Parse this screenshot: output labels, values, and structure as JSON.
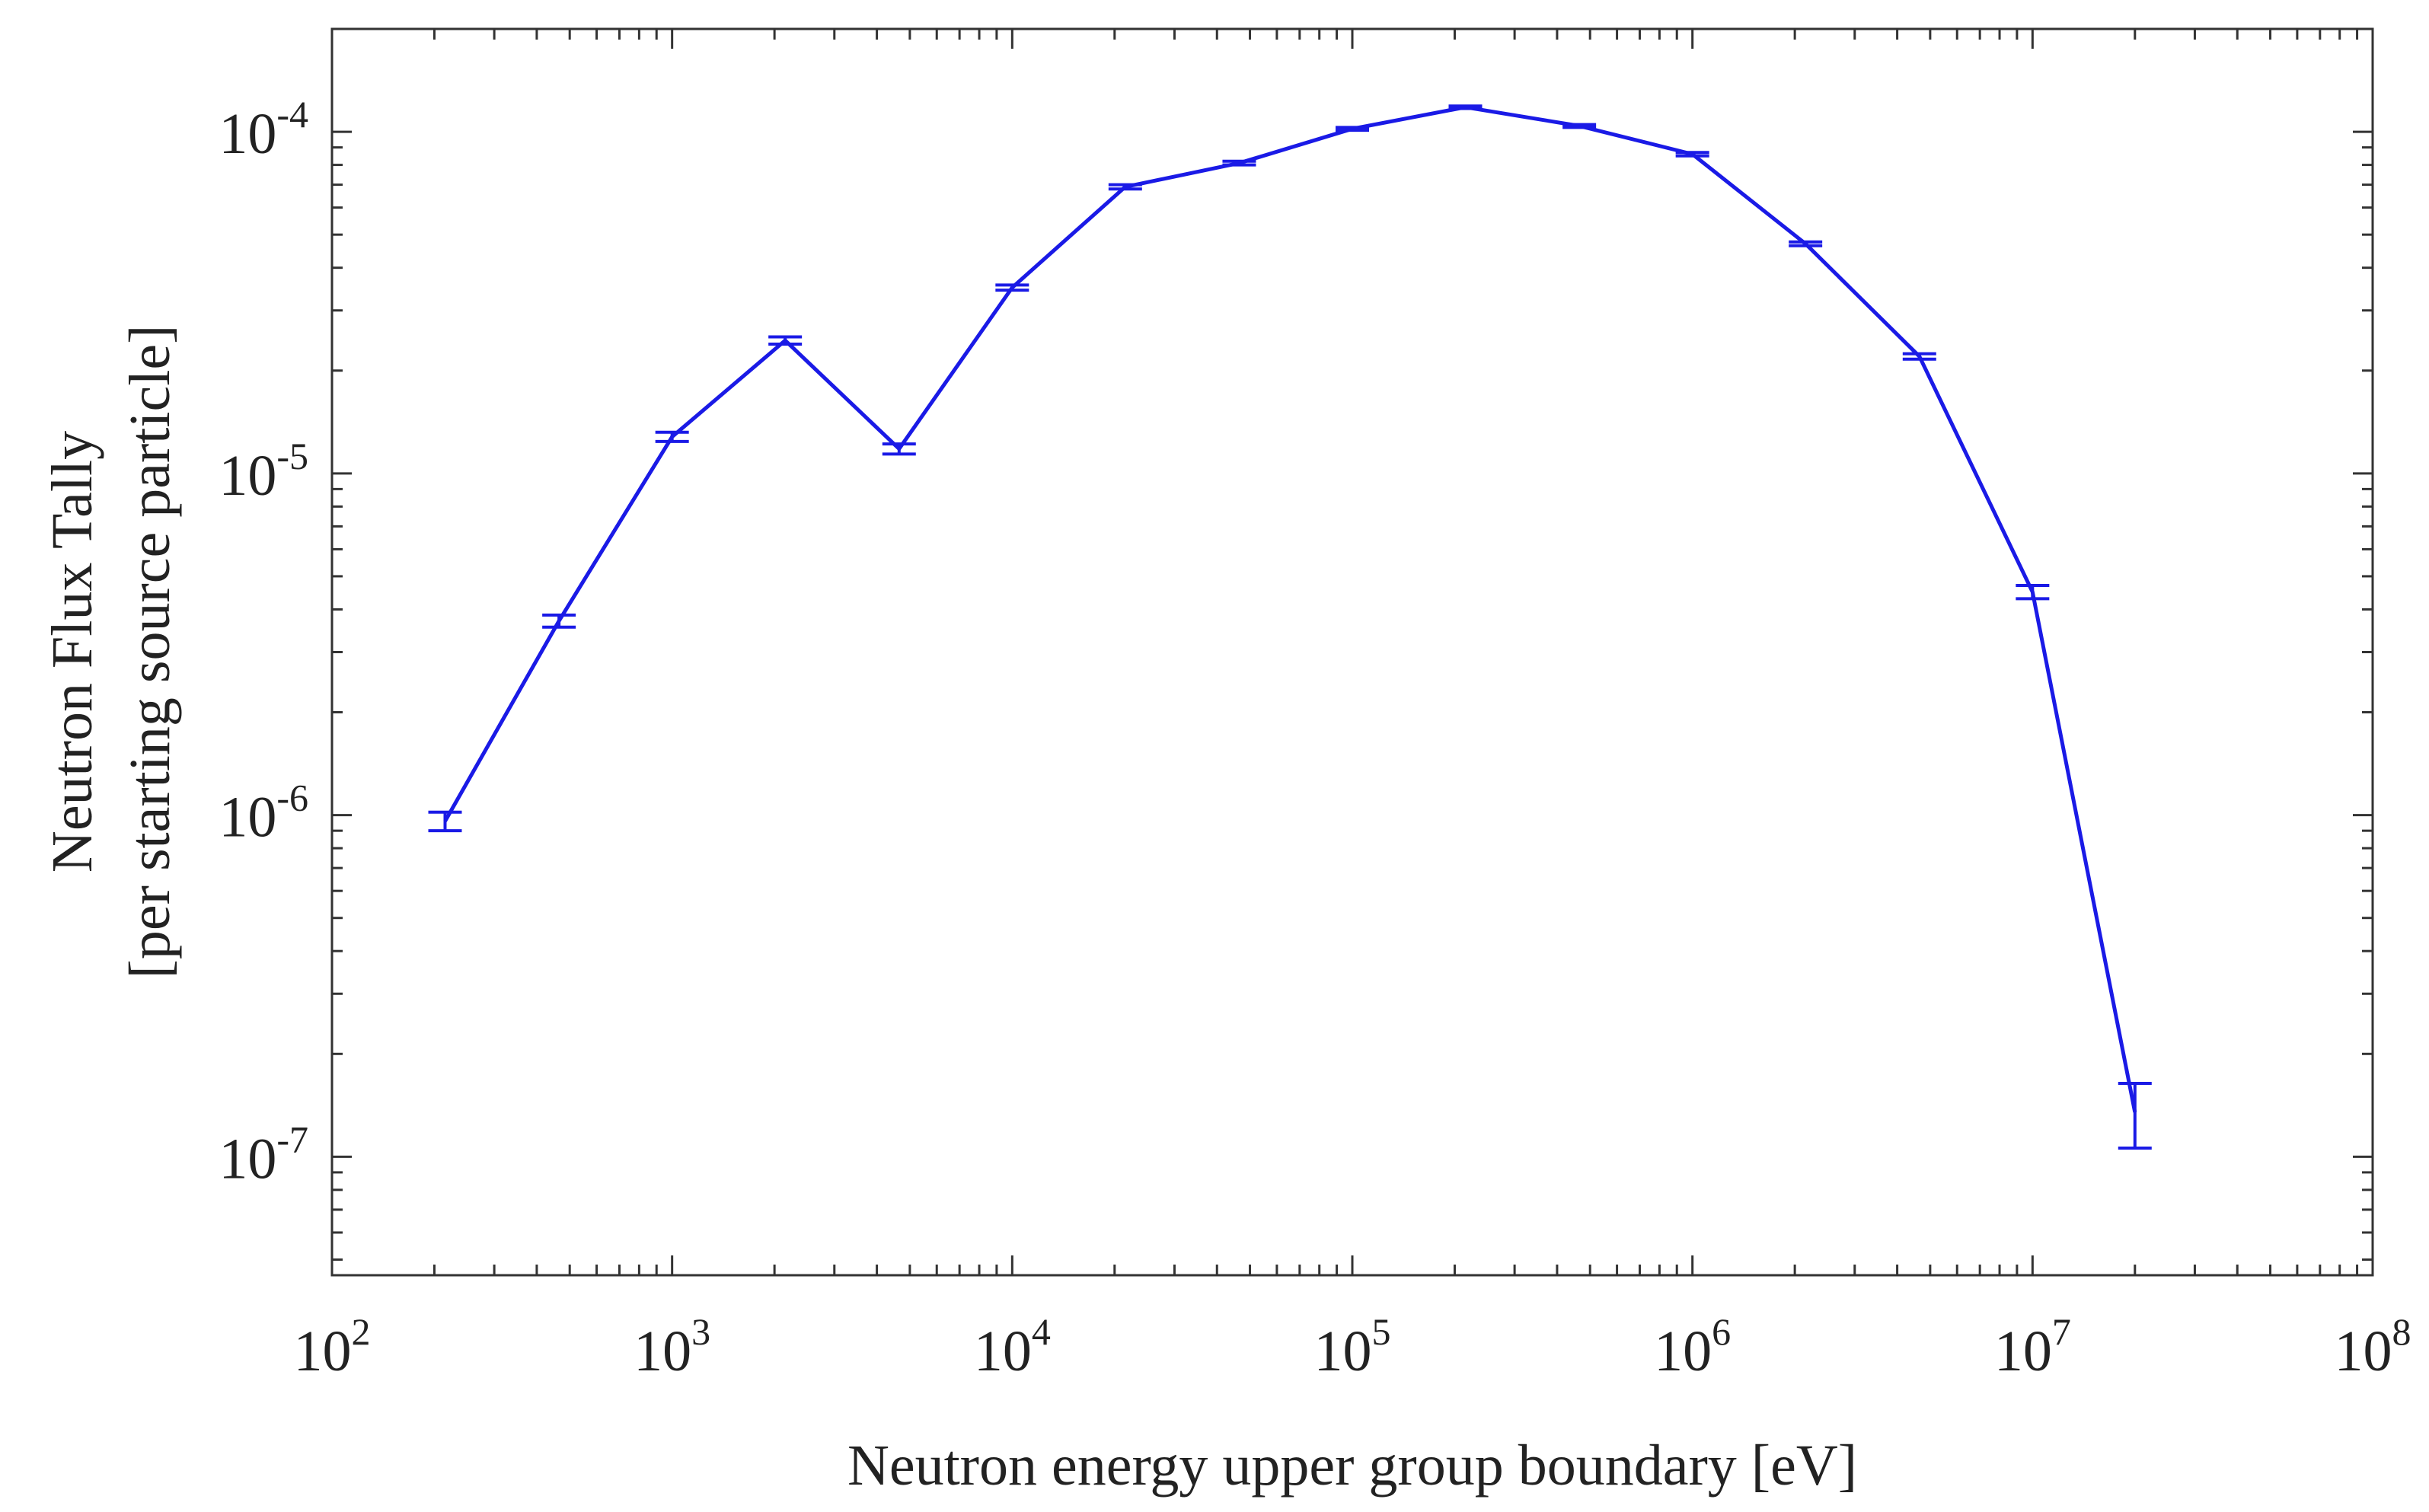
{
  "chart_data": {
    "type": "line",
    "title": "",
    "xlabel": "Neutron energy upper group boundary [eV]",
    "ylabel_lines": [
      "Neutron Flux Tally",
      "[per starting source particle]"
    ],
    "xscale": "log",
    "yscale": "log",
    "xlim": [
      100,
      100000000
    ],
    "ylim": [
      4.5e-08,
      0.0002
    ],
    "grid": false,
    "legend": "none",
    "x_ticks": [
      {
        "base": "10",
        "exp": "2",
        "value": 100
      },
      {
        "base": "10",
        "exp": "3",
        "value": 1000
      },
      {
        "base": "10",
        "exp": "4",
        "value": 10000
      },
      {
        "base": "10",
        "exp": "5",
        "value": 100000
      },
      {
        "base": "10",
        "exp": "6",
        "value": 1000000
      },
      {
        "base": "10",
        "exp": "7",
        "value": 10000000
      },
      {
        "base": "10",
        "exp": "8",
        "value": 100000000
      }
    ],
    "y_ticks": [
      {
        "base": "10",
        "exp": "-7",
        "value": 1e-07
      },
      {
        "base": "10",
        "exp": "-6",
        "value": 1e-06
      },
      {
        "base": "10",
        "exp": "-5",
        "value": 1e-05
      },
      {
        "base": "10",
        "exp": "-4",
        "value": 0.0001
      }
    ],
    "series": [
      {
        "name": "Neutron flux",
        "color": "#1a1ae6",
        "x": [
          215,
          465,
          1000,
          2150,
          4650,
          10000,
          21500,
          46500,
          100000,
          215000,
          465000,
          1000000,
          2150000,
          4650000,
          10000000,
          20000000
        ],
        "y": [
          9.6e-07,
          3.7e-06,
          1.28e-05,
          2.45e-05,
          1.18e-05,
          3.5e-05,
          6.9e-05,
          8.1e-05,
          0.000102,
          0.000118,
          0.000104,
          8.6e-05,
          4.7e-05,
          2.2e-05,
          4.5e-06,
          1.35e-07
        ],
        "err": [
          6e-08,
          1.5e-07,
          4e-07,
          6e-07,
          4e-07,
          6e-07,
          1e-06,
          1e-06,
          1e-06,
          1e-06,
          1e-06,
          1e-06,
          6e-07,
          4e-07,
          2e-07,
          2.9e-08
        ]
      }
    ]
  }
}
